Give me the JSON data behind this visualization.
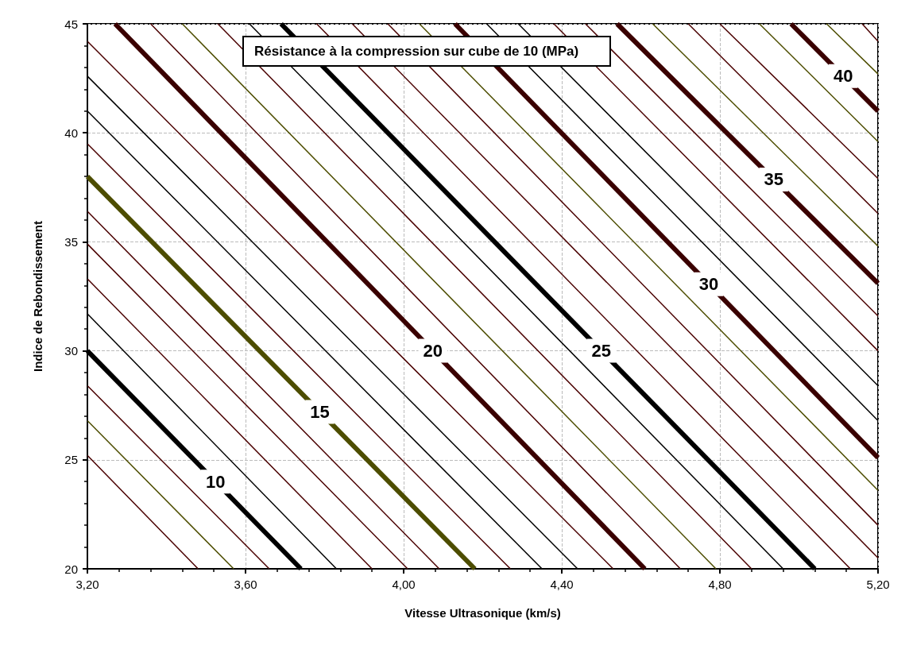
{
  "chart_data": {
    "type": "line",
    "title": "Résistance à la compression sur cube de 10 (MPa)",
    "xlabel": "Vitesse Ultrasonique (km/s)",
    "ylabel": "Indice de Rebondissement",
    "xlim": [
      3.2,
      5.2
    ],
    "ylim": [
      20,
      45
    ],
    "xticks": [
      {
        "value": 3.2,
        "label": "3,20"
      },
      {
        "value": 3.6,
        "label": "3,60"
      },
      {
        "value": 4.0,
        "label": "4,00"
      },
      {
        "value": 4.4,
        "label": "4,40"
      },
      {
        "value": 4.8,
        "label": "4,80"
      },
      {
        "value": 5.2,
        "label": "5,20"
      }
    ],
    "yticks": [
      20,
      25,
      30,
      35,
      40,
      45
    ],
    "grid": true,
    "marker": "none",
    "line_style": "solid",
    "series": [
      {
        "color": "#4a0000",
        "x": [
          3.2,
          3.48
        ],
        "values": [
          25.2,
          20
        ]
      },
      {
        "color": "#4d4d00",
        "x": [
          3.2,
          3.57
        ],
        "values": [
          26.8,
          20
        ]
      },
      {
        "color": "#4a0000",
        "x": [
          3.2,
          3.66
        ],
        "values": [
          28.4,
          20
        ]
      },
      {
        "name": "10",
        "color": "#000000",
        "x": [
          3.2,
          3.74
        ],
        "values": [
          30.0,
          20
        ]
      },
      {
        "color": "#000000",
        "x": [
          3.2,
          3.83
        ],
        "values": [
          31.7,
          20
        ]
      },
      {
        "color": "#4a0000",
        "x": [
          3.2,
          3.92
        ],
        "values": [
          33.3,
          20
        ]
      },
      {
        "color": "#4a0000",
        "x": [
          3.2,
          4.01
        ],
        "values": [
          34.9,
          20
        ]
      },
      {
        "color": "#4a0000",
        "x": [
          3.2,
          4.09
        ],
        "values": [
          36.4,
          20
        ]
      },
      {
        "name": "15",
        "color": "#4d4d00",
        "x": [
          3.2,
          4.18
        ],
        "values": [
          38.0,
          20
        ]
      },
      {
        "color": "#4a0000",
        "x": [
          3.2,
          4.27
        ],
        "values": [
          39.5,
          20
        ]
      },
      {
        "color": "#000000",
        "x": [
          3.2,
          4.35
        ],
        "values": [
          41.0,
          20
        ]
      },
      {
        "color": "#000000",
        "x": [
          3.2,
          4.44
        ],
        "values": [
          42.6,
          20
        ]
      },
      {
        "color": "#4a0000",
        "x": [
          3.2,
          4.53
        ],
        "values": [
          44.2,
          20
        ]
      },
      {
        "name": "20",
        "color": "#3a0000",
        "x": [
          3.27,
          4.61
        ],
        "values": [
          45,
          20
        ]
      },
      {
        "color": "#4a0000",
        "x": [
          3.36,
          4.7
        ],
        "values": [
          45,
          20
        ]
      },
      {
        "color": "#4d4d00",
        "x": [
          3.44,
          4.79
        ],
        "values": [
          45,
          20
        ]
      },
      {
        "color": "#4a0000",
        "x": [
          3.53,
          4.88
        ],
        "values": [
          45,
          20
        ]
      },
      {
        "color": "#000000",
        "x": [
          3.61,
          4.96
        ],
        "values": [
          45,
          20
        ]
      },
      {
        "name": "25",
        "color": "#000000",
        "x": [
          3.69,
          5.04
        ],
        "values": [
          45,
          20
        ]
      },
      {
        "color": "#4a0000",
        "x": [
          3.78,
          5.13
        ],
        "values": [
          45,
          20
        ]
      },
      {
        "color": "#4a0000",
        "x": [
          3.87,
          5.2
        ],
        "values": [
          45,
          20.5
        ]
      },
      {
        "color": "#4a0000",
        "x": [
          3.96,
          5.2
        ],
        "values": [
          45,
          22.0
        ]
      },
      {
        "color": "#4d4d00",
        "x": [
          4.04,
          5.2
        ],
        "values": [
          45,
          23.6
        ]
      },
      {
        "name": "30",
        "color": "#3a0000",
        "x": [
          4.13,
          5.2
        ],
        "values": [
          45,
          25.1
        ]
      },
      {
        "color": "#000000",
        "x": [
          4.21,
          5.2
        ],
        "values": [
          45,
          26.8
        ]
      },
      {
        "color": "#000000",
        "x": [
          4.29,
          5.2
        ],
        "values": [
          45,
          28.4
        ]
      },
      {
        "color": "#4a0000",
        "x": [
          4.38,
          5.2
        ],
        "values": [
          45,
          30.0
        ]
      },
      {
        "color": "#4a0000",
        "x": [
          4.46,
          5.2
        ],
        "values": [
          45,
          31.6
        ]
      },
      {
        "name": "35",
        "color": "#3a0000",
        "x": [
          4.54,
          5.2
        ],
        "values": [
          45,
          33.1
        ]
      },
      {
        "color": "#4d4d00",
        "x": [
          4.63,
          5.2
        ],
        "values": [
          45,
          34.8
        ]
      },
      {
        "color": "#4a0000",
        "x": [
          4.72,
          5.2
        ],
        "values": [
          45,
          36.3
        ]
      },
      {
        "color": "#4a0000",
        "x": [
          4.8,
          5.2
        ],
        "values": [
          45,
          37.9
        ]
      },
      {
        "color": "#4d4d00",
        "x": [
          4.9,
          5.2
        ],
        "values": [
          45,
          39.6
        ]
      },
      {
        "name": "40",
        "color": "#3a0000",
        "x": [
          4.98,
          5.2
        ],
        "values": [
          45,
          41.0
        ]
      },
      {
        "color": "#4d4d00",
        "x": [
          5.07,
          5.2
        ],
        "values": [
          45,
          42.7
        ]
      },
      {
        "color": "#4a0000",
        "x": [
          5.16,
          5.2
        ],
        "values": [
          45,
          44.2
        ]
      }
    ]
  }
}
